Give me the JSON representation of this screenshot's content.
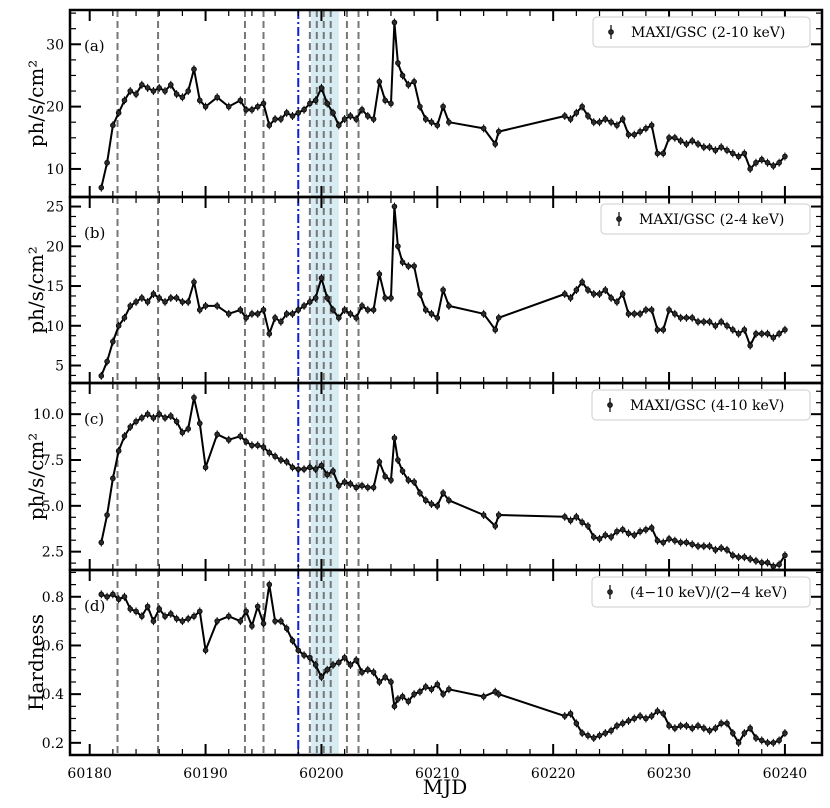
{
  "chart_data": {
    "type": "line",
    "x_label": "MJD",
    "x_ticks": [
      60180,
      60190,
      60200,
      60210,
      60220,
      60230,
      60240
    ],
    "xlim": [
      60178.3,
      60243.2
    ],
    "vertical_lines_dashed": [
      60182.4,
      60185.9,
      60193.4,
      60195.0,
      60199.0,
      60199.6,
      60200.2,
      60200.8,
      60202.2,
      60203.2
    ],
    "vertical_line_dashdot": 60198.0,
    "shaded_span": [
      60199.1,
      60201.5
    ],
    "panels": [
      {
        "id": "a",
        "tag": "(a)",
        "ylabel": "ph/s/cm²",
        "ylim": [
          5.5,
          35.5
        ],
        "yticks": [
          10,
          20,
          30
        ],
        "legend": "MAXI/GSC (2-10 keV)",
        "series": {
          "x": [
            60181.0,
            60181.5,
            60182.0,
            60182.5,
            60183.0,
            60183.5,
            60184.0,
            60184.5,
            60185.0,
            60185.5,
            60186.0,
            60186.5,
            60187.0,
            60187.5,
            60188.0,
            60188.5,
            60189.0,
            60189.5,
            60190.0,
            60191.0,
            60192.0,
            60193.0,
            60193.5,
            60194.0,
            60194.5,
            60195.0,
            60195.5,
            60196.0,
            60196.5,
            60197.0,
            60197.5,
            60198.0,
            60198.5,
            60199.0,
            60199.5,
            60200.0,
            60200.5,
            60201.0,
            60201.5,
            60202.0,
            60202.5,
            60203.0,
            60203.5,
            60204.0,
            60204.5,
            60205.0,
            60205.5,
            60206.0,
            60206.3,
            60206.6,
            60207.0,
            60207.5,
            60208.0,
            60208.5,
            60209.0,
            60209.5,
            60210.0,
            60210.5,
            60211.0,
            60214.0,
            60215.0,
            60215.3,
            60221.0,
            60221.5,
            60222.0,
            60222.5,
            60223.0,
            60223.5,
            60224.0,
            60224.5,
            60225.0,
            60225.5,
            60226.0,
            60226.5,
            60227.0,
            60227.5,
            60228.0,
            60228.5,
            60229.0,
            60229.5,
            60230.0,
            60230.5,
            60231.0,
            60231.5,
            60232.0,
            60232.5,
            60233.0,
            60233.5,
            60234.0,
            60234.5,
            60235.0,
            60235.5,
            60236.0,
            60236.5,
            60237.0,
            60237.5,
            60238.0,
            60238.5,
            60239.0,
            60239.5,
            60240.0
          ],
          "y": [
            7.0,
            11.0,
            17.0,
            19.0,
            21.0,
            22.5,
            22.0,
            23.5,
            23.0,
            22.5,
            23.0,
            22.5,
            23.5,
            22.0,
            21.5,
            22.5,
            26.0,
            21.0,
            20.0,
            21.5,
            20.0,
            21.0,
            19.5,
            19.5,
            20.0,
            20.5,
            17.0,
            18.0,
            18.0,
            19.0,
            18.5,
            19.0,
            19.5,
            20.5,
            21.0,
            23.0,
            20.5,
            19.0,
            17.0,
            18.0,
            18.5,
            18.0,
            19.5,
            18.5,
            18.0,
            24.0,
            21.0,
            20.5,
            33.5,
            27.0,
            25.0,
            23.5,
            24.0,
            20.0,
            18.0,
            17.5,
            17.0,
            20.0,
            17.5,
            16.5,
            14.0,
            16.0,
            18.5,
            18.0,
            19.0,
            20.0,
            18.5,
            17.5,
            17.5,
            18.0,
            17.5,
            17.0,
            18.0,
            15.5,
            15.5,
            16.0,
            16.5,
            17.0,
            12.5,
            12.5,
            15.0,
            15.0,
            14.5,
            14.0,
            14.5,
            14.0,
            13.5,
            13.5,
            13.0,
            13.5,
            13.0,
            12.5,
            12.0,
            12.5,
            10.0,
            11.0,
            11.5,
            11.0,
            10.5,
            11.0,
            12.0
          ]
        }
      },
      {
        "id": "b",
        "tag": "(b)",
        "ylabel": "ph/s/cm²",
        "ylim": [
          2.8,
          26.2
        ],
        "yticks": [
          5,
          10,
          15,
          20,
          25
        ],
        "legend": "MAXI/GSC (2-4 keV)",
        "series": {
          "x": [
            60181.0,
            60181.5,
            60182.0,
            60182.5,
            60183.0,
            60183.5,
            60184.0,
            60184.5,
            60185.0,
            60185.5,
            60186.0,
            60186.5,
            60187.0,
            60187.5,
            60188.0,
            60188.5,
            60189.0,
            60189.5,
            60190.0,
            60191.0,
            60192.0,
            60193.0,
            60193.5,
            60194.0,
            60194.5,
            60195.0,
            60195.5,
            60196.0,
            60196.5,
            60197.0,
            60197.5,
            60198.0,
            60198.5,
            60199.0,
            60199.5,
            60200.0,
            60200.5,
            60201.0,
            60201.5,
            60202.0,
            60202.5,
            60203.0,
            60203.5,
            60204.0,
            60204.5,
            60205.0,
            60205.5,
            60206.0,
            60206.3,
            60206.6,
            60207.0,
            60207.5,
            60208.0,
            60208.5,
            60209.0,
            60209.5,
            60210.0,
            60210.5,
            60211.0,
            60214.0,
            60215.0,
            60215.3,
            60221.0,
            60221.5,
            60222.0,
            60222.5,
            60223.0,
            60223.5,
            60224.0,
            60224.5,
            60225.0,
            60225.5,
            60226.0,
            60226.5,
            60227.0,
            60227.5,
            60228.0,
            60228.5,
            60229.0,
            60229.5,
            60230.0,
            60230.5,
            60231.0,
            60231.5,
            60232.0,
            60232.5,
            60233.0,
            60233.5,
            60234.0,
            60234.5,
            60235.0,
            60235.5,
            60236.0,
            60236.5,
            60237.0,
            60237.5,
            60238.0,
            60238.5,
            60239.0,
            60239.5,
            60240.0
          ],
          "y": [
            3.7,
            5.5,
            8.0,
            10.0,
            11.0,
            12.5,
            13.0,
            13.5,
            13.0,
            14.0,
            13.5,
            13.0,
            13.5,
            13.5,
            13.0,
            13.0,
            15.5,
            12.0,
            12.5,
            12.5,
            11.5,
            12.0,
            11.0,
            11.5,
            11.5,
            12.0,
            9.0,
            11.0,
            10.5,
            11.5,
            11.5,
            12.0,
            12.5,
            13.0,
            13.5,
            16.0,
            13.5,
            12.0,
            11.0,
            12.0,
            11.5,
            11.0,
            12.5,
            12.0,
            12.0,
            16.5,
            13.5,
            13.5,
            25.0,
            20.0,
            18.0,
            17.5,
            17.5,
            14.0,
            12.0,
            11.5,
            11.0,
            14.5,
            12.5,
            11.5,
            9.5,
            11.0,
            14.0,
            13.5,
            14.5,
            15.5,
            14.5,
            14.0,
            14.0,
            14.5,
            13.5,
            13.0,
            14.0,
            11.5,
            11.5,
            11.5,
            12.0,
            12.0,
            9.5,
            9.5,
            12.0,
            11.5,
            11.0,
            11.0,
            11.0,
            10.5,
            10.5,
            10.5,
            10.0,
            10.5,
            10.0,
            9.5,
            9.0,
            9.5,
            7.5,
            9.0,
            9.0,
            9.0,
            8.5,
            9.0,
            9.5
          ]
        }
      },
      {
        "id": "c",
        "tag": "(c)",
        "ylabel": "ph/s/cm²",
        "ylim": [
          1.5,
          11.7
        ],
        "yticks": [
          2.5,
          5.0,
          7.5,
          10.0
        ],
        "legend": "MAXI/GSC (4-10 keV)",
        "series": {
          "x": [
            60181.0,
            60181.5,
            60182.0,
            60182.5,
            60183.0,
            60183.5,
            60184.0,
            60184.5,
            60185.0,
            60185.5,
            60186.0,
            60186.5,
            60187.0,
            60187.5,
            60188.0,
            60188.5,
            60189.0,
            60189.5,
            60190.0,
            60191.0,
            60192.0,
            60193.0,
            60193.5,
            60194.0,
            60194.5,
            60195.0,
            60195.5,
            60196.0,
            60196.5,
            60197.0,
            60197.5,
            60198.0,
            60198.5,
            60199.0,
            60199.5,
            60200.0,
            60200.5,
            60201.0,
            60201.5,
            60202.0,
            60202.5,
            60203.0,
            60203.5,
            60204.0,
            60204.5,
            60205.0,
            60205.5,
            60206.0,
            60206.3,
            60206.6,
            60207.0,
            60207.5,
            60208.0,
            60208.5,
            60209.0,
            60209.5,
            60210.0,
            60210.5,
            60211.0,
            60214.0,
            60215.0,
            60215.3,
            60221.0,
            60221.5,
            60222.0,
            60222.5,
            60223.0,
            60223.5,
            60224.0,
            60224.5,
            60225.0,
            60225.5,
            60226.0,
            60226.5,
            60227.0,
            60227.5,
            60228.0,
            60228.5,
            60229.0,
            60229.5,
            60230.0,
            60230.5,
            60231.0,
            60231.5,
            60232.0,
            60232.5,
            60233.0,
            60233.5,
            60234.0,
            60234.5,
            60235.0,
            60235.5,
            60236.0,
            60236.5,
            60237.0,
            60237.5,
            60238.0,
            60238.5,
            60239.0,
            60239.5,
            60240.0
          ],
          "y": [
            3.0,
            4.5,
            6.5,
            8.0,
            8.8,
            9.3,
            9.6,
            9.8,
            10.0,
            9.8,
            10.0,
            9.8,
            9.9,
            9.6,
            9.0,
            9.2,
            10.9,
            9.5,
            7.1,
            8.9,
            8.6,
            8.8,
            8.5,
            8.3,
            8.3,
            8.2,
            7.9,
            7.7,
            7.5,
            7.4,
            7.1,
            7.0,
            7.0,
            7.1,
            7.0,
            7.2,
            6.7,
            6.9,
            6.1,
            6.3,
            6.2,
            6.0,
            6.1,
            6.0,
            6.0,
            7.4,
            6.6,
            6.4,
            8.7,
            7.5,
            6.9,
            6.4,
            6.3,
            5.7,
            5.3,
            5.1,
            5.0,
            5.7,
            5.3,
            4.5,
            3.9,
            4.5,
            4.4,
            4.2,
            4.4,
            4.1,
            3.9,
            3.3,
            3.2,
            3.4,
            3.3,
            3.6,
            3.7,
            3.5,
            3.4,
            3.6,
            3.7,
            3.8,
            3.1,
            3.0,
            3.2,
            3.1,
            3.0,
            3.0,
            2.9,
            2.8,
            2.8,
            2.8,
            2.6,
            2.7,
            2.6,
            2.3,
            2.2,
            2.2,
            2.1,
            2.0,
            1.9,
            1.9,
            1.7,
            1.8,
            2.3
          ]
        }
      },
      {
        "id": "d",
        "tag": "(d)",
        "ylabel": "Hardness",
        "ylim": [
          0.15,
          0.91
        ],
        "yticks": [
          0.2,
          0.4,
          0.6,
          0.8
        ],
        "legend": "(4−10 keV)/(2−4 keV)",
        "series": {
          "x": [
            60181.0,
            60181.5,
            60182.0,
            60182.5,
            60183.0,
            60183.5,
            60184.0,
            60184.5,
            60185.0,
            60185.5,
            60186.0,
            60186.5,
            60187.0,
            60187.5,
            60188.0,
            60188.5,
            60189.0,
            60189.5,
            60190.0,
            60191.0,
            60192.0,
            60193.0,
            60193.5,
            60194.0,
            60194.5,
            60195.0,
            60195.5,
            60196.0,
            60196.5,
            60197.0,
            60197.5,
            60198.0,
            60198.5,
            60199.0,
            60199.5,
            60200.0,
            60200.5,
            60201.0,
            60201.5,
            60202.0,
            60202.5,
            60203.0,
            60203.5,
            60204.0,
            60204.5,
            60205.0,
            60205.5,
            60206.0,
            60206.3,
            60206.6,
            60207.0,
            60207.5,
            60208.0,
            60208.5,
            60209.0,
            60209.5,
            60210.0,
            60210.5,
            60211.0,
            60214.0,
            60215.0,
            60215.3,
            60221.0,
            60221.5,
            60222.0,
            60222.5,
            60223.0,
            60223.5,
            60224.0,
            60224.5,
            60225.0,
            60225.5,
            60226.0,
            60226.5,
            60227.0,
            60227.5,
            60228.0,
            60228.5,
            60229.0,
            60229.5,
            60230.0,
            60230.5,
            60231.0,
            60231.5,
            60232.0,
            60232.5,
            60233.0,
            60233.5,
            60234.0,
            60234.5,
            60235.0,
            60235.5,
            60236.0,
            60236.5,
            60237.0,
            60237.5,
            60238.0,
            60238.5,
            60239.0,
            60239.5,
            60240.0
          ],
          "y": [
            0.81,
            0.8,
            0.81,
            0.79,
            0.8,
            0.75,
            0.74,
            0.72,
            0.76,
            0.7,
            0.75,
            0.72,
            0.73,
            0.71,
            0.7,
            0.71,
            0.72,
            0.74,
            0.58,
            0.7,
            0.72,
            0.7,
            0.74,
            0.68,
            0.76,
            0.69,
            0.85,
            0.7,
            0.7,
            0.67,
            0.62,
            0.58,
            0.56,
            0.55,
            0.52,
            0.47,
            0.5,
            0.52,
            0.53,
            0.55,
            0.52,
            0.54,
            0.49,
            0.5,
            0.49,
            0.45,
            0.47,
            0.45,
            0.35,
            0.38,
            0.39,
            0.37,
            0.4,
            0.41,
            0.43,
            0.42,
            0.44,
            0.4,
            0.42,
            0.39,
            0.41,
            0.4,
            0.31,
            0.32,
            0.28,
            0.24,
            0.23,
            0.22,
            0.23,
            0.24,
            0.25,
            0.27,
            0.28,
            0.29,
            0.3,
            0.31,
            0.3,
            0.31,
            0.33,
            0.32,
            0.27,
            0.26,
            0.27,
            0.27,
            0.26,
            0.27,
            0.26,
            0.25,
            0.26,
            0.28,
            0.28,
            0.24,
            0.2,
            0.24,
            0.26,
            0.22,
            0.21,
            0.2,
            0.2,
            0.21,
            0.24
          ]
        }
      }
    ]
  }
}
